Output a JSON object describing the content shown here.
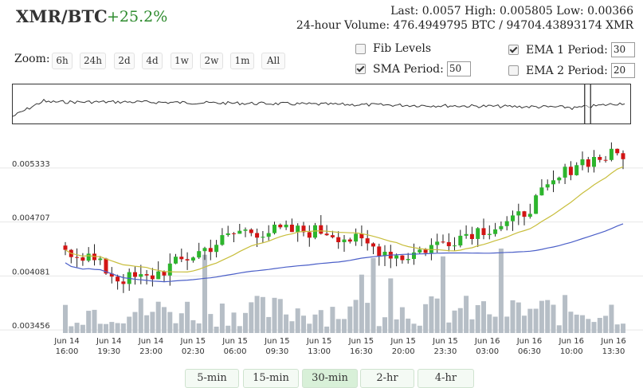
{
  "header": {
    "pair": "XMR/BTC",
    "change": "+25.2%",
    "stats_line1": "Last: 0.0057   High: 0.005805   Low: 0.00366",
    "stats_line2": "24-hour Volume: 476.4949795 BTC / 94704.43893174 XMR"
  },
  "zoom": {
    "label": "Zoom:",
    "buttons": [
      "6h",
      "24h",
      "2d",
      "4d",
      "1w",
      "2w",
      "1m",
      "All"
    ]
  },
  "controls": {
    "fib_label": "Fib Levels",
    "fib_checked": false,
    "sma_label": "SMA Period:",
    "sma_checked": true,
    "sma_value": "50",
    "ema1_label": "EMA 1 Period:",
    "ema1_checked": true,
    "ema1_value": "30",
    "ema2_label": "EMA 2 Period:",
    "ema2_checked": false,
    "ema2_value": "20"
  },
  "periods": {
    "buttons": [
      "5-min",
      "15-min",
      "30-min",
      "2-hr",
      "4-hr"
    ],
    "active": "30-min"
  },
  "colors": {
    "up": "#2db52d",
    "down": "#d21414",
    "volume": "#b6bec6",
    "sma": "#c8be3c",
    "ema": "#4b5fc8",
    "grid": "#e6e6e6"
  },
  "chart_data": {
    "type": "candlestick",
    "y_ticks": [
      "0.005333",
      "0.004707",
      "0.004081",
      "0.003456"
    ],
    "x_ticks": [
      {
        "date": "Jun 14",
        "time": "16:00"
      },
      {
        "date": "Jun 14",
        "time": "19:30"
      },
      {
        "date": "Jun 14",
        "time": "23:00"
      },
      {
        "date": "Jun 15",
        "time": "02:30"
      },
      {
        "date": "Jun 15",
        "time": "06:00"
      },
      {
        "date": "Jun 15",
        "time": "09:30"
      },
      {
        "date": "Jun 15",
        "time": "13:00"
      },
      {
        "date": "Jun 15",
        "time": "16:30"
      },
      {
        "date": "Jun 15",
        "time": "20:00"
      },
      {
        "date": "Jun 15",
        "time": "23:30"
      },
      {
        "date": "Jun 16",
        "time": "03:00"
      },
      {
        "date": "Jun 16",
        "time": "06:30"
      },
      {
        "date": "Jun 16",
        "time": "10:00"
      },
      {
        "date": "Jun 16",
        "time": "13:30"
      }
    ],
    "ylim": [
      0.00342,
      0.005803
    ],
    "candle_count": 97,
    "candle_keys": [
      0,
      4,
      9,
      14,
      30,
      45,
      58,
      70,
      77,
      88,
      96
    ],
    "candle_price_keys": [
      0.0044,
      0.0043,
      0.00405,
      0.00405,
      0.0046,
      0.0046,
      0.0043,
      0.0046,
      0.0047,
      0.0054,
      0.0055
    ],
    "volume_scale_max": 1.0
  }
}
